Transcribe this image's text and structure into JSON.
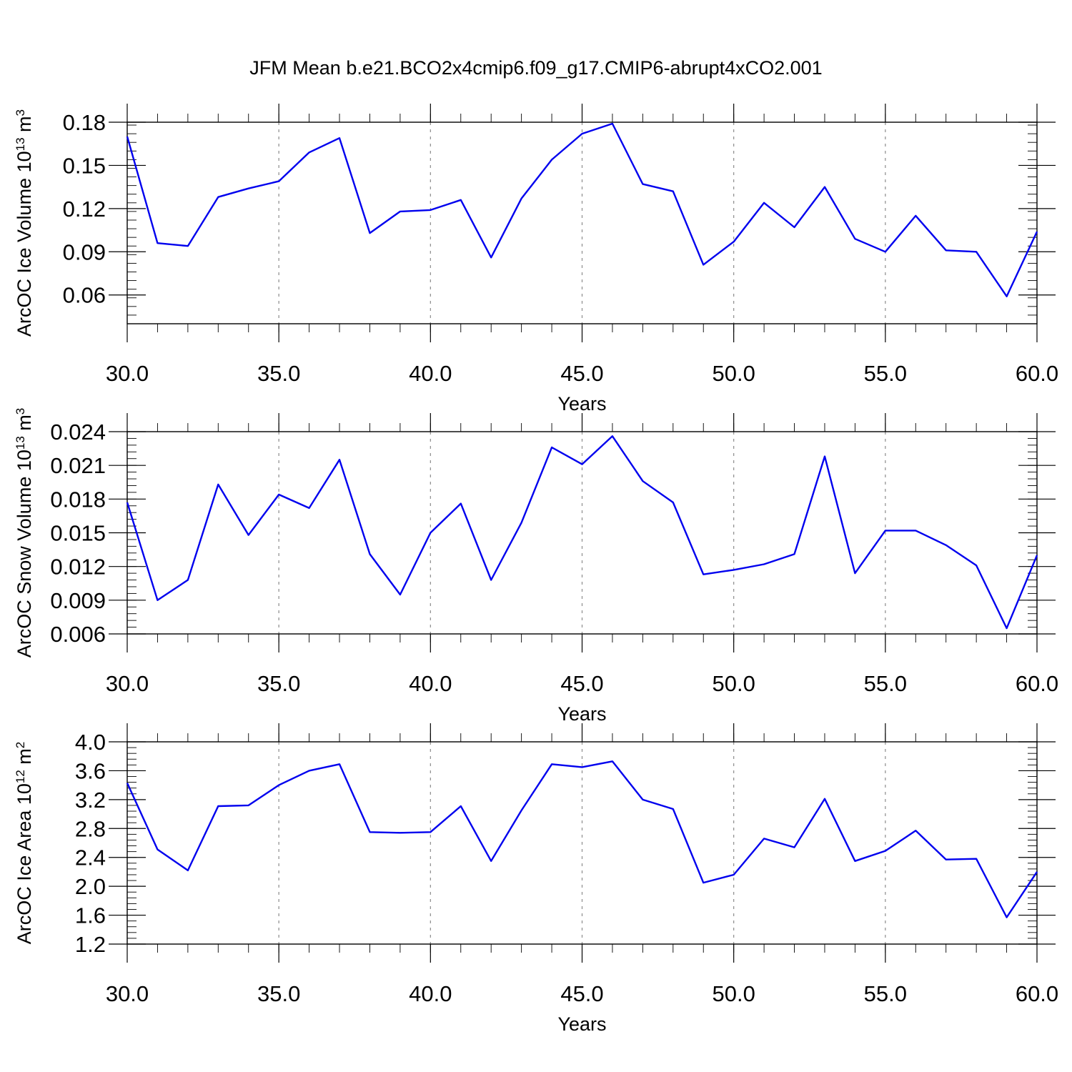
{
  "figure": {
    "title": "JFM Mean b.e21.BCO2x4cmip6.f09_g17.CMIP6-abrupt4xCO2.001"
  },
  "chart_data": [
    {
      "type": "line",
      "title": "",
      "ylabel": "ArcOC Ice Volume",
      "ylabel_unit": {
        "base": "10",
        "exp": "13",
        "unit": "m",
        "unit_exp": "3"
      },
      "xlabel": "Years",
      "xlim": [
        30,
        60
      ],
      "ylim": [
        0.04,
        0.18
      ],
      "xticks": [
        30,
        35,
        40,
        45,
        50,
        55,
        60
      ],
      "xtick_labels": [
        "30.0",
        "35.0",
        "40.0",
        "45.0",
        "50.0",
        "55.0",
        "60.0"
      ],
      "yticks": [
        0.06,
        0.09,
        0.12,
        0.15,
        0.18
      ],
      "ytick_labels": [
        "0.06",
        "0.09",
        "0.12",
        "0.15",
        "0.18"
      ],
      "grid": "x-dashed",
      "color": "#0000ee",
      "x": [
        30,
        31,
        32,
        33,
        34,
        35,
        36,
        37,
        38,
        39,
        40,
        41,
        42,
        43,
        44,
        45,
        46,
        47,
        48,
        49,
        50,
        51,
        52,
        53,
        54,
        55,
        56,
        57,
        58,
        59,
        60
      ],
      "y": [
        0.17,
        0.096,
        0.094,
        0.128,
        0.134,
        0.139,
        0.159,
        0.169,
        0.103,
        0.118,
        0.119,
        0.126,
        0.086,
        0.127,
        0.154,
        0.172,
        0.179,
        0.137,
        0.132,
        0.081,
        0.097,
        0.124,
        0.107,
        0.135,
        0.099,
        0.09,
        0.115,
        0.091,
        0.09,
        0.059,
        0.104
      ]
    },
    {
      "type": "line",
      "title": "",
      "ylabel": "ArcOC Snow Volume",
      "ylabel_unit": {
        "base": "10",
        "exp": "13",
        "unit": "m",
        "unit_exp": "3"
      },
      "xlabel": "Years",
      "xlim": [
        30,
        60
      ],
      "ylim": [
        0.006,
        0.024
      ],
      "xticks": [
        30,
        35,
        40,
        45,
        50,
        55,
        60
      ],
      "xtick_labels": [
        "30.0",
        "35.0",
        "40.0",
        "45.0",
        "50.0",
        "55.0",
        "60.0"
      ],
      "yticks": [
        0.006,
        0.009,
        0.012,
        0.015,
        0.018,
        0.021,
        0.024
      ],
      "ytick_labels": [
        "0.006",
        "0.009",
        "0.012",
        "0.015",
        "0.018",
        "0.021",
        "0.024"
      ],
      "grid": "x-dashed",
      "color": "#0000ee",
      "x": [
        30,
        31,
        32,
        33,
        34,
        35,
        36,
        37,
        38,
        39,
        40,
        41,
        42,
        43,
        44,
        45,
        46,
        47,
        48,
        49,
        50,
        51,
        52,
        53,
        54,
        55,
        56,
        57,
        58,
        59,
        60
      ],
      "y": [
        0.0177,
        0.009,
        0.0108,
        0.0193,
        0.0148,
        0.0184,
        0.0172,
        0.0215,
        0.0131,
        0.0095,
        0.015,
        0.0176,
        0.0108,
        0.0159,
        0.0226,
        0.0211,
        0.0236,
        0.0196,
        0.0177,
        0.0113,
        0.0117,
        0.0122,
        0.0131,
        0.0218,
        0.0114,
        0.0152,
        0.0152,
        0.0139,
        0.0121,
        0.0065,
        0.013
      ]
    },
    {
      "type": "line",
      "title": "",
      "ylabel": "ArcOC Ice Area",
      "ylabel_unit": {
        "base": "10",
        "exp": "12",
        "unit": "m",
        "unit_exp": "2"
      },
      "xlabel": "Years",
      "xlim": [
        30,
        60
      ],
      "ylim": [
        1.2,
        4.0
      ],
      "xticks": [
        30,
        35,
        40,
        45,
        50,
        55,
        60
      ],
      "xtick_labels": [
        "30.0",
        "35.0",
        "40.0",
        "45.0",
        "50.0",
        "55.0",
        "60.0"
      ],
      "yticks": [
        1.2,
        1.6,
        2.0,
        2.4,
        2.8,
        3.2,
        3.6,
        4.0
      ],
      "ytick_labels": [
        "1.2",
        "1.6",
        "2.0",
        "2.4",
        "2.8",
        "3.2",
        "3.6",
        "4.0"
      ],
      "grid": "x-dashed",
      "color": "#0000ee",
      "x": [
        30,
        31,
        32,
        33,
        34,
        35,
        36,
        37,
        38,
        39,
        40,
        41,
        42,
        43,
        44,
        45,
        46,
        47,
        48,
        49,
        50,
        51,
        52,
        53,
        54,
        55,
        56,
        57,
        58,
        59,
        60
      ],
      "y": [
        3.43,
        2.51,
        2.22,
        3.11,
        3.12,
        3.4,
        3.6,
        3.69,
        2.75,
        2.74,
        2.75,
        3.11,
        2.35,
        3.05,
        3.69,
        3.65,
        3.73,
        3.2,
        3.07,
        2.05,
        2.16,
        2.66,
        2.54,
        3.21,
        2.35,
        2.49,
        2.77,
        2.37,
        2.38,
        1.57,
        2.2
      ]
    }
  ]
}
